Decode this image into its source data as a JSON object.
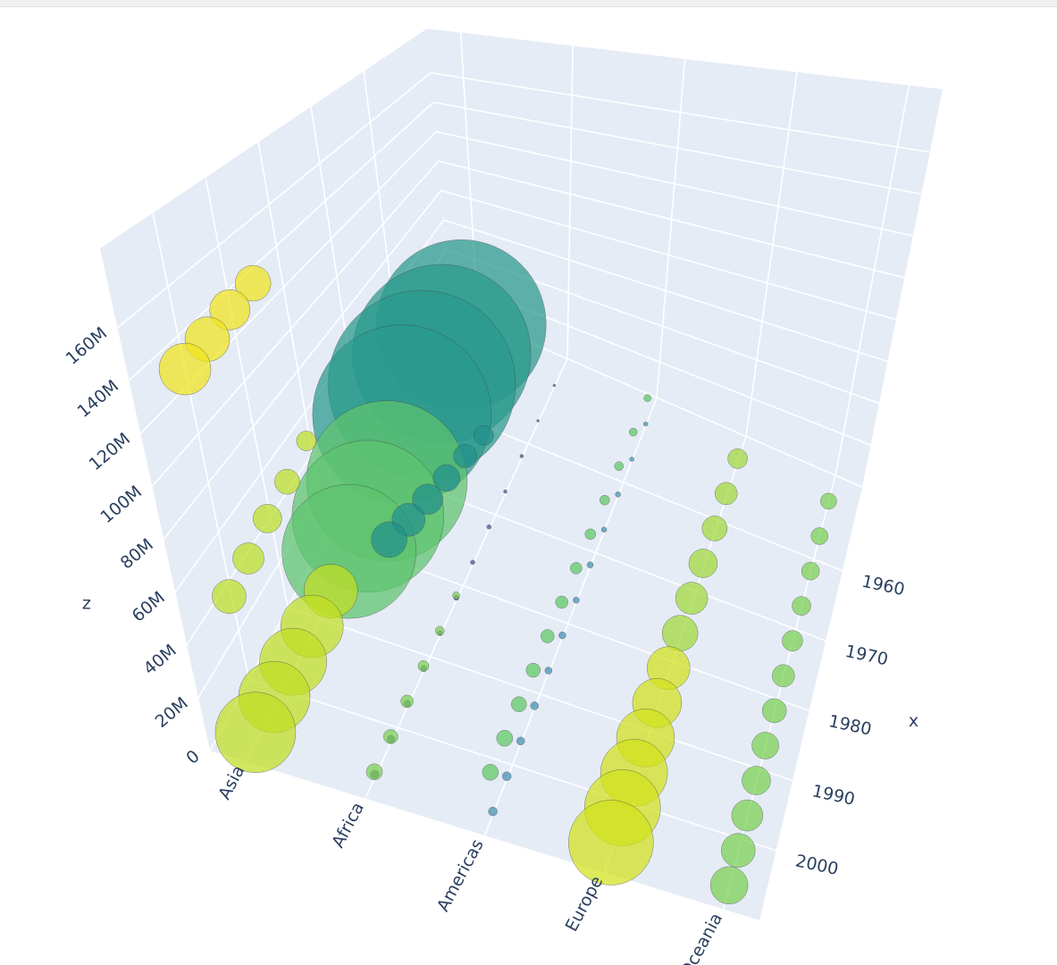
{
  "chart_data": {
    "type": "scatter3d",
    "x_title": "x",
    "z_title": "z",
    "categories": [
      "Asia",
      "Africa",
      "Americas",
      "Europe",
      "Oceania"
    ],
    "xlim": [
      1948,
      2010
    ],
    "xticks": [
      1960,
      1970,
      1980,
      1990,
      2000
    ],
    "zlim": [
      0,
      190000000
    ],
    "zticks": [
      {
        "value": 0,
        "label": "0"
      },
      {
        "value": 20000000,
        "label": "20M"
      },
      {
        "value": 40000000,
        "label": "40M"
      },
      {
        "value": 60000000,
        "label": "60M"
      },
      {
        "value": 80000000,
        "label": "80M"
      },
      {
        "value": 100000000,
        "label": "100M"
      },
      {
        "value": 120000000,
        "label": "120M"
      },
      {
        "value": 140000000,
        "label": "140M"
      },
      {
        "value": 160000000,
        "label": "160M"
      }
    ],
    "grid": true,
    "series": [
      {
        "color": "#2a9a8e",
        "x": [
          1952,
          1957,
          1962,
          1967
        ],
        "y": [
          "Asia",
          "Asia",
          "Asia",
          "Asia"
        ],
        "z": [
          15000000,
          18000000,
          20000000,
          22000000
        ],
        "size": [
          190,
          200,
          210,
          200
        ]
      },
      {
        "color": "#5ec46e",
        "x": [
          1972,
          1977,
          1982
        ],
        "y": [
          "Asia",
          "Asia",
          "Asia"
        ],
        "z": [
          5000000,
          5000000,
          5000000
        ],
        "size": [
          180,
          170,
          150
        ]
      },
      {
        "color": "#c2df23",
        "x": [
          1987,
          1992,
          1997,
          2002,
          2007
        ],
        "y": [
          "Asia",
          "Asia",
          "Asia",
          "Asia",
          "Asia"
        ],
        "z": [
          3000000,
          3000000,
          3000000,
          3000000,
          3000000
        ],
        "size": [
          60,
          70,
          75,
          80,
          90
        ]
      },
      {
        "color": "#f1e51d",
        "x": [
          1992,
          1997,
          2002,
          2007
        ],
        "y": [
          "Asia",
          "Asia",
          "Asia",
          "Asia"
        ],
        "z": [
          150000000,
          148000000,
          145000000,
          142000000
        ],
        "size": [
          40,
          45,
          50,
          58
        ]
      },
      {
        "color": "#bddf26",
        "x": [
          1987,
          1992,
          1997,
          2002,
          2007
        ],
        "y": [
          "Asia",
          "Asia",
          "Asia",
          "Asia",
          "Asia"
        ],
        "z": [
          70000000,
          65000000,
          62000000,
          58000000,
          55000000
        ],
        "size": [
          22,
          28,
          32,
          35,
          38
        ]
      },
      {
        "color": "#21918c",
        "x": [
          1972,
          1977,
          1982,
          1987,
          1992,
          1997
        ],
        "y": [
          "Africa",
          "Africa",
          "Africa",
          "Africa",
          "Africa",
          "Africa"
        ],
        "z": [
          45000000,
          50000000,
          54000000,
          58000000,
          62000000,
          66000000
        ],
        "size": [
          22,
          26,
          30,
          34,
          37,
          40
        ]
      },
      {
        "color": "#3b528b",
        "x": [
          1952,
          1957,
          1962,
          1967,
          1972,
          1977,
          1982,
          1987,
          1992,
          1997,
          2002,
          2007
        ],
        "y": [
          "Africa",
          "Africa",
          "Africa",
          "Africa",
          "Africa",
          "Africa",
          "Africa",
          "Africa",
          "Africa",
          "Africa",
          "Africa",
          "Africa"
        ],
        "z": [
          1000000,
          1000000,
          1000000,
          1000000,
          1000000,
          1000000,
          1000000,
          1000000,
          1000000,
          1000000,
          1000000,
          1000000
        ],
        "size": [
          3,
          3,
          4,
          4,
          5,
          5,
          6,
          6,
          7,
          8,
          9,
          10
        ]
      },
      {
        "color": "#7ad151",
        "x": [
          1982,
          1987,
          1992,
          1997,
          2002,
          2007
        ],
        "y": [
          "Africa",
          "Africa",
          "Africa",
          "Africa",
          "Africa",
          "Africa"
        ],
        "z": [
          2000000,
          2000000,
          2000000,
          2000000,
          2000000,
          2000000
        ],
        "size": [
          8,
          10,
          12,
          14,
          16,
          18
        ]
      },
      {
        "color": "#5ec962",
        "x": [
          1952,
          1957,
          1962,
          1967,
          1972,
          1977,
          1982,
          1987,
          1992,
          1997,
          2002,
          2007
        ],
        "y": [
          "Americas",
          "Americas",
          "Americas",
          "Americas",
          "Americas",
          "Americas",
          "Americas",
          "Americas",
          "Americas",
          "Americas",
          "Americas",
          "Americas"
        ],
        "z": [
          15000000,
          15000000,
          15000000,
          15000000,
          15000000,
          15000000,
          15000000,
          15000000,
          15000000,
          15000000,
          15000000,
          15000000
        ],
        "size": [
          8,
          9,
          10,
          11,
          12,
          13,
          14,
          15,
          16,
          17,
          18,
          18
        ]
      },
      {
        "color": "#3e8fb0",
        "x": [
          1952,
          1957,
          1962,
          1967,
          1972,
          1977,
          1982,
          1987,
          1992,
          1997,
          2002,
          2007
        ],
        "y": [
          "Americas",
          "Americas",
          "Americas",
          "Americas",
          "Americas",
          "Americas",
          "Americas",
          "Americas",
          "Americas",
          "Americas",
          "Americas",
          "Americas"
        ],
        "z": [
          1000000,
          1000000,
          1000000,
          1000000,
          1000000,
          1000000,
          1000000,
          1000000,
          1000000,
          1000000,
          1000000,
          1000000
        ],
        "size": [
          5,
          5,
          6,
          6,
          7,
          7,
          8,
          8,
          9,
          9,
          10,
          10
        ]
      },
      {
        "color": "#a0da39",
        "x": [
          1952,
          1957,
          1962,
          1967,
          1972,
          1977
        ],
        "y": [
          "Europe",
          "Europe",
          "Europe",
          "Europe",
          "Europe",
          "Europe"
        ],
        "z": [
          3000000,
          3000000,
          3000000,
          3000000,
          3000000,
          3000000
        ],
        "size": [
          22,
          25,
          28,
          32,
          36,
          40
        ]
      },
      {
        "color": "#d2e21b",
        "x": [
          1982,
          1987,
          1992,
          1997,
          2002,
          2007
        ],
        "y": [
          "Europe",
          "Europe",
          "Europe",
          "Europe",
          "Europe",
          "Europe"
        ],
        "z": [
          3000000,
          3000000,
          3000000,
          3000000,
          3000000,
          3000000
        ],
        "size": [
          48,
          55,
          65,
          75,
          85,
          95
        ]
      },
      {
        "color": "#7ad151",
        "x": [
          1952,
          1957,
          1962,
          1967,
          1972,
          1977,
          1982,
          1987,
          1992,
          1997,
          2002,
          2007
        ],
        "y": [
          "Oceania",
          "Oceania",
          "Oceania",
          "Oceania",
          "Oceania",
          "Oceania",
          "Oceania",
          "Oceania",
          "Oceania",
          "Oceania",
          "Oceania",
          "Oceania"
        ],
        "z": [
          1000000,
          1000000,
          1000000,
          1000000,
          1000000,
          1000000,
          1000000,
          1000000,
          1000000,
          1000000,
          1000000,
          1000000
        ],
        "size": [
          18,
          19,
          20,
          21,
          23,
          25,
          27,
          30,
          32,
          35,
          38,
          42
        ]
      }
    ]
  }
}
